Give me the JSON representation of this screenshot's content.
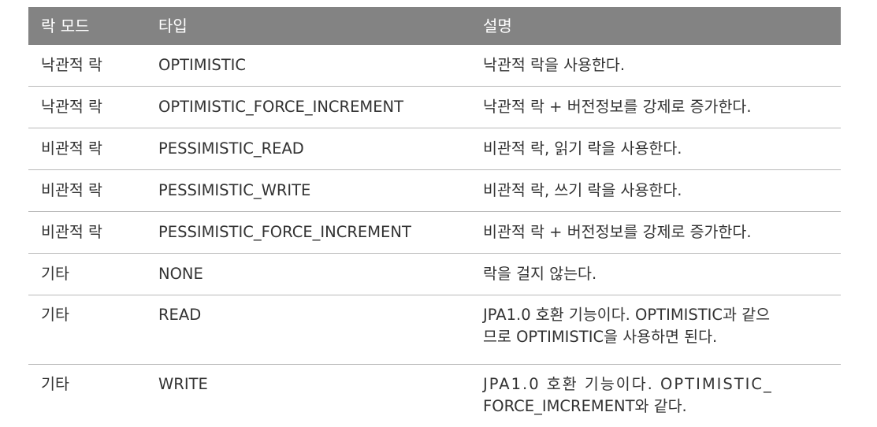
{
  "table": {
    "headers": [
      "락 모드",
      "타입",
      "설명"
    ],
    "rows": [
      {
        "mode": "낙관적 락",
        "type": "OPTIMISTIC",
        "desc": [
          "낙관적 락을 사용한다."
        ]
      },
      {
        "mode": "낙관적 락",
        "type": "OPTIMISTIC_FORCE_INCREMENT",
        "desc": [
          "낙관적 락 + 버전정보를 강제로 증가한다."
        ]
      },
      {
        "mode": "비관적 락",
        "type": "PESSIMISTIC_READ",
        "desc": [
          "비관적 락, 읽기 락을 사용한다."
        ]
      },
      {
        "mode": "비관적 락",
        "type": "PESSIMISTIC_WRITE",
        "desc": [
          "비관적 락, 쓰기 락을 사용한다."
        ]
      },
      {
        "mode": "비관적 락",
        "type": "PESSIMISTIC_FORCE_INCREMENT",
        "desc": [
          "비관적 락 + 버전정보를 강제로 증가한다."
        ]
      },
      {
        "mode": "기타",
        "type": "NONE",
        "desc": [
          "락을 걸지 않는다."
        ]
      },
      {
        "mode": "기타",
        "type": "READ",
        "desc": [
          "JPA1.0 호환 기능이다. OPTIMISTIC과 같으",
          "므로 OPTIMISTIC을 사용하면 된다."
        ]
      },
      {
        "mode": "기타",
        "type": "WRITE",
        "desc": [
          "JPA1.0 호환 기능이다. OPTIMISTIC_",
          "FORCE_IMCREMENT와 같다."
        ]
      }
    ]
  }
}
